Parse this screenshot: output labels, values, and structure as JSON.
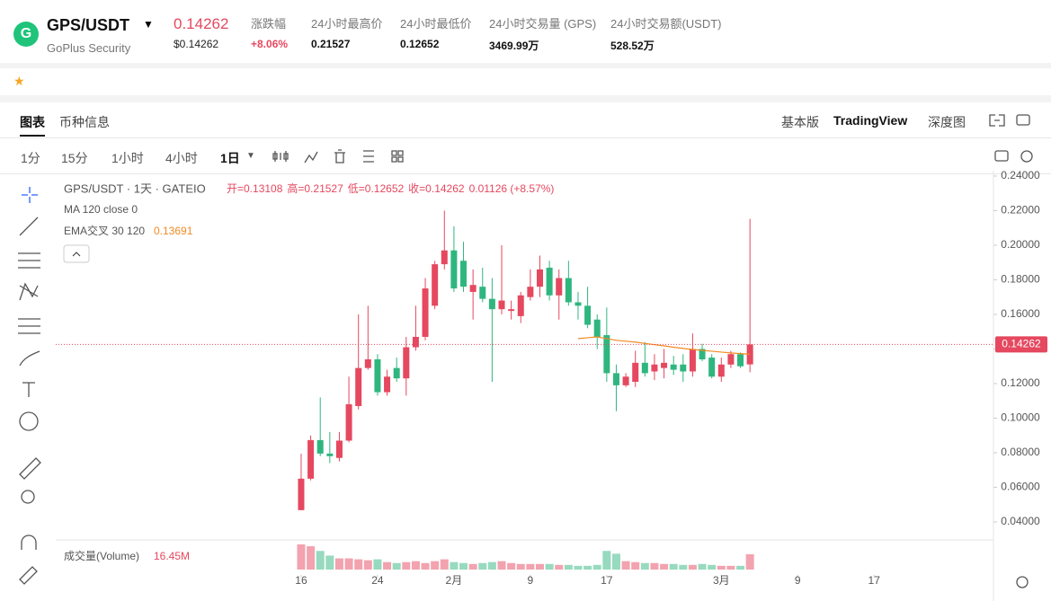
{
  "header": {
    "symbol": "GPS/USDT",
    "name": "GoPlus Security",
    "price": "0.14262",
    "price_usd": "$0.14262",
    "stats": [
      {
        "label": "涨跌幅",
        "value": "+8.06%"
      },
      {
        "label": "24小时最高价",
        "value": "0.21527"
      },
      {
        "label": "24小时最低价",
        "value": "0.12652"
      },
      {
        "label": "24小时交易量 (GPS)",
        "value": "3469.99万"
      },
      {
        "label": "24小时交易额(USDT)",
        "value": "528.52万"
      }
    ]
  },
  "tabs": [
    "图表",
    "币种信息"
  ],
  "views": [
    "基本版",
    "TradingView",
    "深度图"
  ],
  "intervals": [
    "1分",
    "15分",
    "1小时",
    "4小时",
    "1日"
  ],
  "chart_data": {
    "type": "candlestick",
    "title": "GPS/USDT · 1天 · GATEIO",
    "legend": {
      "open": "开=0.13108",
      "high": "高=0.21527",
      "low": "低=0.12652",
      "close": "收=0.14262",
      "change": "0.01126 (+8.57%)",
      "ma": "MA 120 close 0"
    },
    "up_color": "#e5485f",
    "down_color": "#2fb67f",
    "open": [
      0.0468,
      0.065,
      0.0873,
      0.0795,
      0.077,
      0.087,
      0.107,
      0.129,
      0.134,
      0.115,
      0.129,
      0.123,
      0.141,
      0.147,
      0.165,
      0.189,
      0.197,
      0.191,
      0.173,
      0.176,
      0.169,
      0.163,
      0.162,
      0.159,
      0.17,
      0.176,
      0.187,
      0.171,
      0.181,
      0.167,
      0.165,
      0.157,
      0.148,
      0.126,
      0.119,
      0.121,
      0.132,
      0.127,
      0.129,
      0.131,
      0.131,
      0.127,
      0.14,
      0.135,
      0.124,
      0.131,
      0.137,
      0.13108
    ],
    "high": [
      0.0795,
      0.09,
      0.112,
      0.092,
      0.092,
      0.124,
      0.16,
      0.165,
      0.137,
      0.128,
      0.135,
      0.147,
      0.165,
      0.181,
      0.191,
      0.22,
      0.211,
      0.202,
      0.186,
      0.187,
      0.181,
      0.2,
      0.168,
      0.173,
      0.186,
      0.194,
      0.191,
      0.186,
      0.191,
      0.173,
      0.176,
      0.16,
      0.164,
      0.131,
      0.126,
      0.139,
      0.144,
      0.137,
      0.14,
      0.136,
      0.137,
      0.149,
      0.143,
      0.137,
      0.135,
      0.139,
      0.138,
      0.21527
    ],
    "low": [
      0.0468,
      0.064,
      0.078,
      0.074,
      0.075,
      0.086,
      0.105,
      0.128,
      0.113,
      0.113,
      0.121,
      0.113,
      0.139,
      0.145,
      0.163,
      0.186,
      0.173,
      0.173,
      0.157,
      0.167,
      0.121,
      0.16,
      0.157,
      0.155,
      0.168,
      0.17,
      0.168,
      0.157,
      0.165,
      0.157,
      0.152,
      0.14,
      0.121,
      0.104,
      0.118,
      0.118,
      0.124,
      0.122,
      0.123,
      0.125,
      0.121,
      0.124,
      0.133,
      0.123,
      0.121,
      0.129,
      0.129,
      0.12652
    ],
    "close": [
      0.065,
      0.0873,
      0.0795,
      0.078,
      0.087,
      0.108,
      0.129,
      0.134,
      0.115,
      0.124,
      0.123,
      0.141,
      0.147,
      0.175,
      0.189,
      0.197,
      0.175,
      0.176,
      0.177,
      0.169,
      0.163,
      0.168,
      0.163,
      0.171,
      0.176,
      0.186,
      0.171,
      0.181,
      0.167,
      0.165,
      0.154,
      0.147,
      0.126,
      0.119,
      0.124,
      0.132,
      0.126,
      0.131,
      0.132,
      0.128,
      0.127,
      0.14,
      0.134,
      0.124,
      0.131,
      0.137,
      0.13,
      0.14262
    ],
    "ema": {
      "name": "EMA交叉 30 120",
      "color": "#f08a24",
      "values": [
        null,
        null,
        null,
        null,
        null,
        null,
        null,
        null,
        null,
        null,
        null,
        null,
        null,
        null,
        null,
        null,
        null,
        null,
        null,
        null,
        null,
        null,
        null,
        null,
        null,
        null,
        null,
        null,
        null,
        0.146,
        0.1465,
        0.147,
        0.146,
        0.145,
        0.1445,
        0.144,
        0.1432,
        0.1425,
        0.1418,
        0.141,
        0.1403,
        0.1397,
        0.1392,
        0.1387,
        0.1382,
        0.1377,
        0.1373,
        0.13691
      ]
    },
    "volume": {
      "name": "成交量(Volume)",
      "values": [
        27,
        25,
        20,
        15,
        12,
        12,
        11,
        10,
        11,
        8,
        7,
        8,
        9,
        7,
        9,
        11,
        8,
        7,
        6,
        7,
        8,
        9,
        7,
        6,
        6,
        6,
        6,
        5,
        5,
        4,
        4,
        5,
        20,
        17,
        9,
        8,
        7,
        7,
        6,
        6,
        5,
        5,
        6,
        5,
        4,
        4,
        4,
        16.45
      ],
      "value_labels": [
        null,
        null,
        null,
        null,
        null,
        null,
        null,
        null,
        null,
        null,
        null,
        null,
        null,
        null,
        null,
        null,
        null,
        null,
        null,
        null,
        null,
        null,
        null,
        null,
        null,
        null,
        null,
        null,
        null,
        null,
        null,
        null,
        null,
        null,
        null,
        null,
        null,
        null,
        null,
        null,
        null,
        null,
        null,
        null,
        null,
        null,
        null,
        "16.45M"
      ]
    },
    "xlim": [
      -25.7,
      72.5
    ],
    "xticks": [
      {
        "value": 0,
        "label": "16"
      },
      {
        "value": 8,
        "label": "24"
      },
      {
        "value": 16,
        "label": "2月"
      },
      {
        "value": 24,
        "label": "9"
      },
      {
        "value": 32,
        "label": "17"
      },
      {
        "value": 44,
        "label": "3月"
      },
      {
        "value": 52,
        "label": "9"
      },
      {
        "value": 60,
        "label": "17"
      }
    ],
    "ylim": [
      0.0301,
      0.2431
    ],
    "yticks": [
      {
        "value": 0.04,
        "label": "0.04000"
      },
      {
        "value": 0.06,
        "label": "0.06000"
      },
      {
        "value": 0.08,
        "label": "0.08000"
      },
      {
        "value": 0.1,
        "label": "0.10000"
      },
      {
        "value": 0.12,
        "label": "0.12000"
      },
      {
        "value": 0.14,
        "label": "0.14000"
      },
      {
        "value": 0.16,
        "label": "0.16000"
      },
      {
        "value": 0.18,
        "label": "0.18000"
      },
      {
        "value": 0.2,
        "label": "0.20000"
      },
      {
        "value": 0.22,
        "label": "0.22000"
      },
      {
        "value": 0.24,
        "label": "0.24000"
      }
    ],
    "grid": false
  }
}
